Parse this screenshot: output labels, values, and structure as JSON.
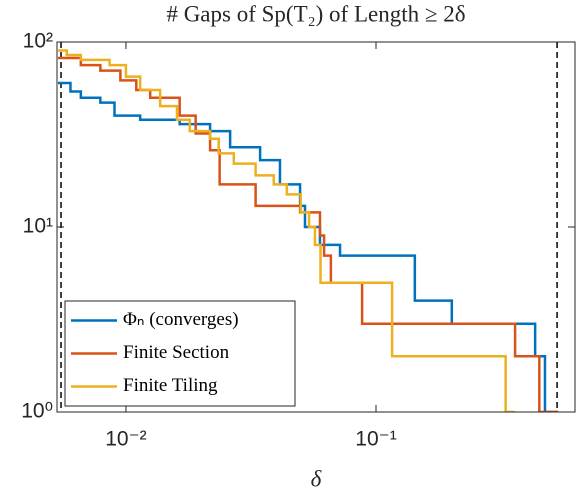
{
  "chart_data": {
    "type": "step",
    "title": "# Gaps of Sp(T₂) of Length ≥ 2δ",
    "xlabel": "δ",
    "xscale": "log",
    "yscale": "log",
    "xlim": [
      0.0053,
      0.625
    ],
    "ylim": [
      1,
      100
    ],
    "xticks": [
      {
        "value": 0.01,
        "label": "10⁻²"
      },
      {
        "value": 0.1,
        "label": "10⁻¹"
      }
    ],
    "yticks": [
      {
        "value": 1,
        "label": "10⁰"
      },
      {
        "value": 10,
        "label": "10¹"
      },
      {
        "value": 100,
        "label": "10²"
      }
    ],
    "vlines": [
      0.0055,
      0.53
    ],
    "legend": "lower left",
    "series": [
      {
        "name": "Φₙ (converges)",
        "color": "#0072BD",
        "x": [
          0.00535,
          0.006,
          0.006,
          0.0066,
          0.0066,
          0.0079,
          0.0079,
          0.009,
          0.009,
          0.0114,
          0.0114,
          0.0164,
          0.0164,
          0.0217,
          0.0217,
          0.0261,
          0.0261,
          0.0344,
          0.0344,
          0.0413,
          0.0413,
          0.0497,
          0.0497,
          0.052,
          0.052,
          0.0597,
          0.0597,
          0.0718,
          0.0718,
          0.143,
          0.143,
          0.201,
          0.201,
          0.433,
          0.433,
          0.474,
          0.474,
          0.535
        ],
        "values": [
          60,
          60,
          54,
          54,
          50,
          50,
          47,
          47,
          40,
          40,
          38,
          38,
          36,
          36,
          33,
          33,
          27,
          27,
          23,
          23,
          17,
          17,
          13,
          13,
          10,
          10,
          8,
          8,
          7,
          7,
          4,
          4,
          3,
          3,
          2,
          2,
          1,
          1
        ]
      },
      {
        "name": "Finite Section",
        "color": "#D95319",
        "x": [
          0.00535,
          0.0066,
          0.0066,
          0.0079,
          0.0079,
          0.0095,
          0.0095,
          0.011,
          0.011,
          0.0125,
          0.0125,
          0.0164,
          0.0164,
          0.019,
          0.019,
          0.0217,
          0.0217,
          0.0237,
          0.0237,
          0.033,
          0.033,
          0.0497,
          0.0497,
          0.0597,
          0.0597,
          0.062,
          0.062,
          0.066,
          0.066,
          0.088,
          0.088,
          0.36,
          0.36,
          0.45,
          0.45,
          0.535
        ],
        "values": [
          82,
          82,
          75,
          75,
          70,
          70,
          62,
          62,
          55,
          55,
          50,
          50,
          40,
          40,
          32,
          32,
          26,
          26,
          17,
          17,
          13,
          13,
          12,
          12,
          9,
          9,
          7,
          7,
          5,
          5,
          3,
          3,
          2,
          2,
          1,
          1
        ]
      },
      {
        "name": "Finite Tiling",
        "color": "#EDB120",
        "x": [
          0.00535,
          0.0058,
          0.0058,
          0.0066,
          0.0066,
          0.0086,
          0.0086,
          0.01,
          0.01,
          0.0114,
          0.0114,
          0.0137,
          0.0137,
          0.016,
          0.016,
          0.018,
          0.018,
          0.0217,
          0.0217,
          0.0235,
          0.0235,
          0.027,
          0.027,
          0.033,
          0.033,
          0.039,
          0.039,
          0.044,
          0.044,
          0.05,
          0.05,
          0.054,
          0.054,
          0.057,
          0.057,
          0.06,
          0.06,
          0.116,
          0.116,
          0.33,
          0.33,
          0.36
        ],
        "values": [
          90,
          90,
          85,
          85,
          80,
          80,
          75,
          75,
          65,
          65,
          55,
          55,
          45,
          45,
          38,
          38,
          33,
          33,
          30,
          30,
          25,
          25,
          22,
          22,
          19,
          19,
          17,
          17,
          15,
          15,
          12,
          12,
          10,
          10,
          8,
          8,
          5,
          5,
          2,
          2,
          1,
          1
        ]
      }
    ]
  }
}
